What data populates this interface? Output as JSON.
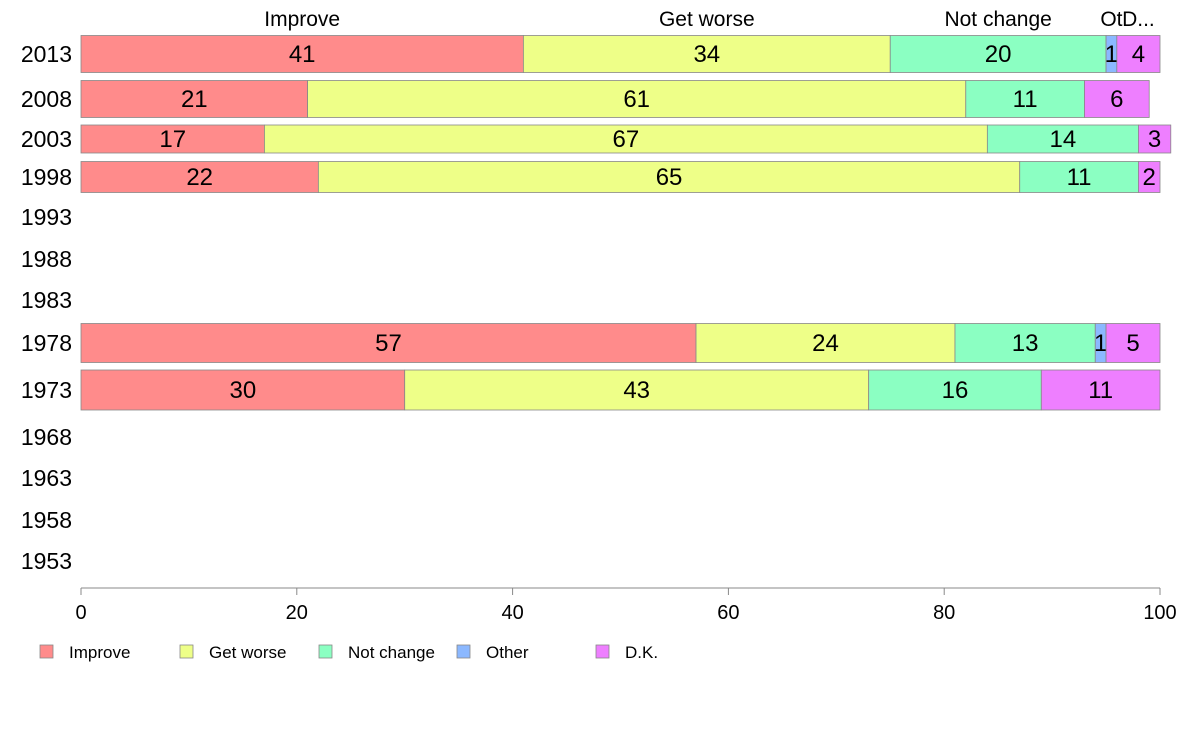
{
  "chart_data": {
    "type": "bar",
    "orientation": "horizontal",
    "stacked": true,
    "title": "",
    "xlabel": "",
    "ylabel": "",
    "xlim": [
      0,
      100
    ],
    "x_ticks": [
      0,
      20,
      40,
      60,
      80,
      100
    ],
    "categories": [
      "2013",
      "2008",
      "2003",
      "1998",
      "1993",
      "1988",
      "1983",
      "1978",
      "1973",
      "1968",
      "1963",
      "1958",
      "1953"
    ],
    "series": [
      {
        "name": "Improve",
        "color": "#ff8b8b",
        "values": [
          41,
          21,
          17,
          22,
          null,
          null,
          null,
          57,
          30,
          null,
          null,
          null,
          null
        ]
      },
      {
        "name": "Get worse",
        "color": "#eeff88",
        "values": [
          34,
          61,
          67,
          65,
          null,
          null,
          null,
          24,
          43,
          null,
          null,
          null,
          null
        ]
      },
      {
        "name": "Not change",
        "color": "#8bffc2",
        "values": [
          20,
          11,
          14,
          11,
          null,
          null,
          null,
          13,
          16,
          null,
          null,
          null,
          null
        ]
      },
      {
        "name": "Other",
        "color": "#8bb8ff",
        "values": [
          1,
          0,
          0,
          0,
          null,
          null,
          null,
          1,
          0,
          null,
          null,
          null,
          null
        ]
      },
      {
        "name": "D.K.",
        "color": "#ee7fff",
        "values": [
          4,
          6,
          3,
          2,
          null,
          null,
          null,
          5,
          11,
          null,
          null,
          null,
          null
        ]
      }
    ],
    "top_labels": [
      "Improve",
      "Get worse",
      "Not change",
      "Ot",
      "D..."
    ],
    "legend": {
      "position": "bottom-left",
      "entries": [
        "Improve",
        "Get worse",
        "Not change",
        "Other",
        "D.K."
      ]
    }
  }
}
